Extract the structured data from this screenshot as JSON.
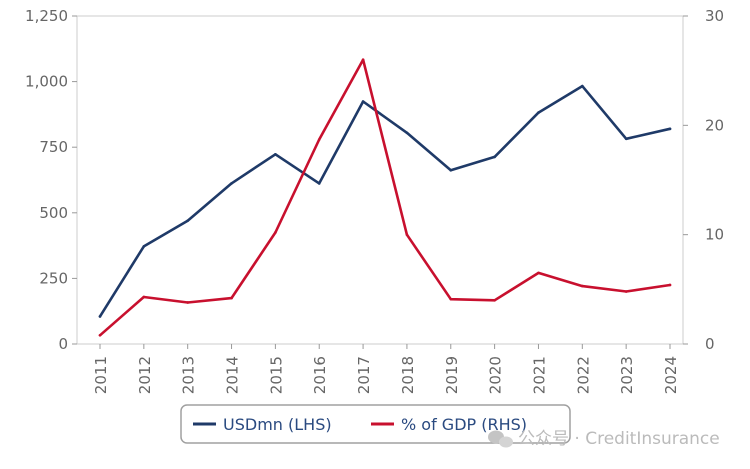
{
  "chart_data": {
    "type": "line",
    "categories": [
      "2011",
      "2012",
      "2013",
      "2014",
      "2015",
      "2016",
      "2017",
      "2018",
      "2019",
      "2020",
      "2021",
      "2022",
      "2023",
      "2024"
    ],
    "series": [
      {
        "name": "USDmn (LHS)",
        "axis": "left",
        "color": "#1f3a68",
        "values": [
          105,
          372,
          470,
          612,
          723,
          612,
          924,
          805,
          662,
          713,
          882,
          983,
          782,
          820
        ]
      },
      {
        "name": "% of GDP (RHS)",
        "axis": "right",
        "color": "#c8102e",
        "values": [
          0.8,
          4.3,
          3.8,
          4.2,
          10.2,
          18.7,
          26.0,
          10.0,
          4.1,
          4.0,
          6.5,
          5.3,
          4.8,
          5.4
        ]
      }
    ],
    "y_left": {
      "min": 0,
      "max": 1250,
      "ticks": [
        "0",
        "250",
        "500",
        "750",
        "1,000",
        "1,250"
      ]
    },
    "y_right": {
      "min": 0,
      "max": 30,
      "ticks": [
        "0",
        "10",
        "20",
        "30"
      ]
    },
    "grid": false,
    "legend_placement": "bottom"
  },
  "legend": {
    "usd_label": "USDmn (LHS)",
    "gdp_label": "% of GDP (RHS)"
  },
  "watermark": {
    "text": "公众号 · CreditInsurance"
  }
}
